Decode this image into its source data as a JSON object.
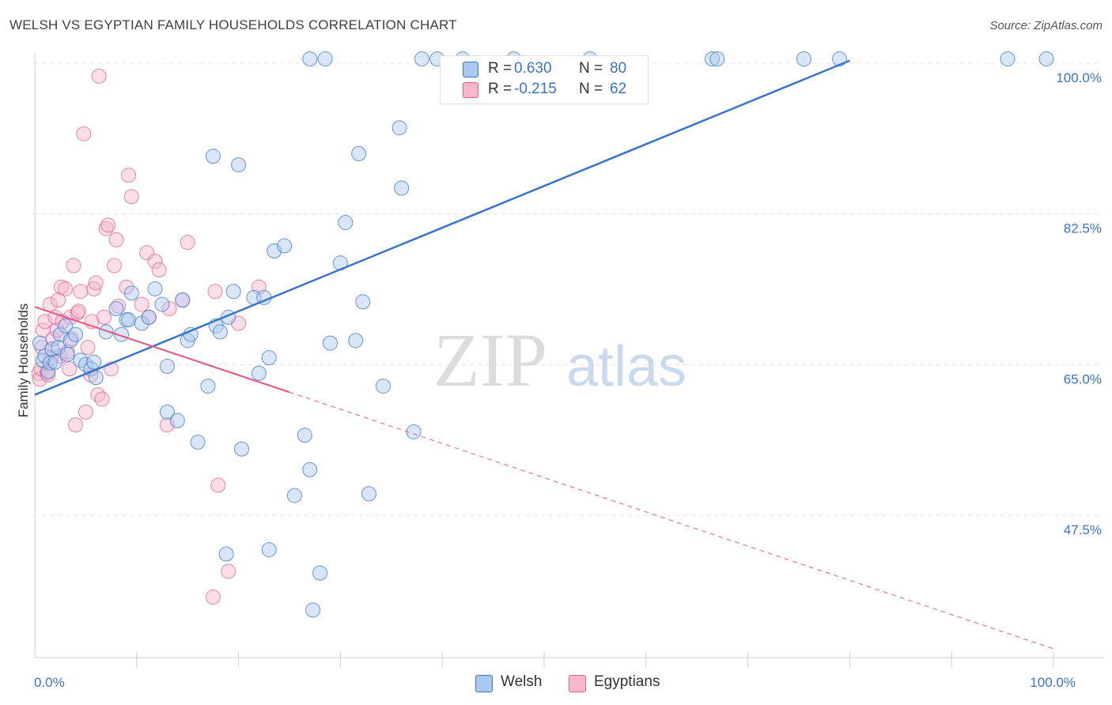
{
  "header": {
    "title": "WELSH VS EGYPTIAN FAMILY HOUSEHOLDS CORRELATION CHART",
    "source": "Source: ZipAtlas.com"
  },
  "watermark": {
    "zip": "ZIP",
    "atlas": "atlas"
  },
  "legend": {
    "welsh": {
      "r_label": "R =",
      "r_value": "0.630",
      "n_label": "N =",
      "n_value": "80"
    },
    "egyptians": {
      "r_label": "R =",
      "r_value": "-0.215",
      "n_label": "N =",
      "n_value": "62"
    }
  },
  "bottom_legend": {
    "welsh": "Welsh",
    "egyptians": "Egyptians"
  },
  "chart_data": {
    "type": "scatter",
    "title": "WELSH VS EGYPTIAN FAMILY HOUSEHOLDS CORRELATION CHART",
    "xlabel": "",
    "ylabel": "Family Households",
    "xlim": [
      0,
      100
    ],
    "ylim": [
      35,
      103
    ],
    "x_tick_labels": [
      {
        "value": 0,
        "label": "0.0%"
      },
      {
        "value": 100,
        "label": "100.0%"
      }
    ],
    "x_minor_ticks": [
      10,
      20,
      30,
      40,
      50,
      60,
      70,
      80,
      90,
      100
    ],
    "y_tick_labels": [
      {
        "value": 100,
        "label": "100.0%"
      },
      {
        "value": 82.5,
        "label": "82.5%"
      },
      {
        "value": 65,
        "label": "65.0%"
      },
      {
        "value": 47.5,
        "label": "47.5%"
      }
    ],
    "grid": true,
    "colors": {
      "welsh": "#3a74c8",
      "welsh_fill": "#aac7ef",
      "egyptians": "#e0608c",
      "egyptians_fill": "#f6b6cb"
    },
    "series": [
      {
        "name": "Welsh",
        "r": 0.63,
        "n": 80,
        "trend": {
          "x": [
            0,
            80
          ],
          "y": [
            61.5,
            100.3
          ]
        },
        "points": [
          [
            0.5,
            67.5
          ],
          [
            0.8,
            65.5
          ],
          [
            1.0,
            66.0
          ],
          [
            1.3,
            64.2
          ],
          [
            1.5,
            65.2
          ],
          [
            1.7,
            66.8
          ],
          [
            2.0,
            65.3
          ],
          [
            2.3,
            67.0
          ],
          [
            2.5,
            68.5
          ],
          [
            3.0,
            69.5
          ],
          [
            3.2,
            66.2
          ],
          [
            3.5,
            67.8
          ],
          [
            4.0,
            68.5
          ],
          [
            4.5,
            65.5
          ],
          [
            5.0,
            65.0
          ],
          [
            5.5,
            64.5
          ],
          [
            5.8,
            65.3
          ],
          [
            6.0,
            63.5
          ],
          [
            7.0,
            68.8
          ],
          [
            8.0,
            71.5
          ],
          [
            8.5,
            68.5
          ],
          [
            9.0,
            70.2
          ],
          [
            9.2,
            70.2
          ],
          [
            9.5,
            73.3
          ],
          [
            10.5,
            69.8
          ],
          [
            11.2,
            70.5
          ],
          [
            11.8,
            73.8
          ],
          [
            12.5,
            72.0
          ],
          [
            13.0,
            64.8
          ],
          [
            13.0,
            59.5
          ],
          [
            14.0,
            58.5
          ],
          [
            14.5,
            72.5
          ],
          [
            15.0,
            67.8
          ],
          [
            15.3,
            68.5
          ],
          [
            16.0,
            56.0
          ],
          [
            17.0,
            62.5
          ],
          [
            17.5,
            89.2
          ],
          [
            17.8,
            69.5
          ],
          [
            18.2,
            68.8
          ],
          [
            19.0,
            70.5
          ],
          [
            19.5,
            73.5
          ],
          [
            20.0,
            88.2
          ],
          [
            20.3,
            55.2
          ],
          [
            21.5,
            72.8
          ],
          [
            22.0,
            64.0
          ],
          [
            22.5,
            72.8
          ],
          [
            23.0,
            65.8
          ],
          [
            23.5,
            78.2
          ],
          [
            24.5,
            78.8
          ],
          [
            25.5,
            49.8
          ],
          [
            27.0,
            52.8
          ],
          [
            27.3,
            36.5
          ],
          [
            28.0,
            40.8
          ],
          [
            29.0,
            67.5
          ],
          [
            30.0,
            76.8
          ],
          [
            30.5,
            81.5
          ],
          [
            31.5,
            67.8
          ],
          [
            31.8,
            89.5
          ],
          [
            32.2,
            72.3
          ],
          [
            32.8,
            50.0
          ],
          [
            34.2,
            62.5
          ],
          [
            35.8,
            92.5
          ],
          [
            36.0,
            85.5
          ],
          [
            37.2,
            57.2
          ],
          [
            27.0,
            100.5
          ],
          [
            28.5,
            100.5
          ],
          [
            38.0,
            100.5
          ],
          [
            39.5,
            100.5
          ],
          [
            42.0,
            100.5
          ],
          [
            47.0,
            100.5
          ],
          [
            54.5,
            100.5
          ],
          [
            66.5,
            100.5
          ],
          [
            67.0,
            100.5
          ],
          [
            75.5,
            100.5
          ],
          [
            79.0,
            100.5
          ],
          [
            95.5,
            100.5
          ],
          [
            99.3,
            100.5
          ],
          [
            18.8,
            43.0
          ],
          [
            23.0,
            43.5
          ],
          [
            26.5,
            56.8
          ]
        ]
      },
      {
        "name": "Egyptians",
        "r": -0.215,
        "n": 62,
        "trend": {
          "x": [
            0,
            25
          ],
          "y": [
            71.7,
            61.8
          ]
        },
        "trend_extended": {
          "x": [
            25,
            100
          ],
          "y": [
            61.8,
            32.0
          ]
        },
        "points": [
          [
            0.4,
            64.0
          ],
          [
            0.5,
            63.3
          ],
          [
            0.6,
            64.5
          ],
          [
            0.7,
            67.0
          ],
          [
            0.8,
            69.0
          ],
          [
            1.0,
            70.0
          ],
          [
            1.2,
            64.0
          ],
          [
            1.3,
            63.8
          ],
          [
            1.5,
            72.0
          ],
          [
            1.6,
            65.8
          ],
          [
            1.8,
            68.0
          ],
          [
            2.0,
            70.5
          ],
          [
            2.2,
            69.0
          ],
          [
            2.3,
            72.5
          ],
          [
            2.5,
            66.0
          ],
          [
            2.6,
            74.0
          ],
          [
            2.7,
            70.0
          ],
          [
            3.0,
            73.8
          ],
          [
            3.2,
            66.5
          ],
          [
            3.4,
            64.5
          ],
          [
            3.5,
            70.5
          ],
          [
            3.6,
            68.0
          ],
          [
            3.8,
            76.5
          ],
          [
            4.0,
            58.0
          ],
          [
            4.2,
            71.0
          ],
          [
            4.3,
            71.2
          ],
          [
            4.5,
            73.5
          ],
          [
            4.8,
            91.8
          ],
          [
            5.0,
            59.5
          ],
          [
            5.2,
            67.0
          ],
          [
            5.5,
            63.8
          ],
          [
            5.6,
            70.0
          ],
          [
            5.8,
            73.8
          ],
          [
            6.0,
            74.5
          ],
          [
            6.2,
            61.5
          ],
          [
            6.3,
            98.5
          ],
          [
            6.6,
            61.0
          ],
          [
            6.8,
            70.5
          ],
          [
            7.0,
            80.8
          ],
          [
            7.2,
            81.2
          ],
          [
            7.5,
            64.5
          ],
          [
            7.8,
            76.5
          ],
          [
            8.0,
            79.5
          ],
          [
            8.2,
            71.8
          ],
          [
            9.0,
            74.0
          ],
          [
            9.2,
            87.0
          ],
          [
            9.5,
            84.5
          ],
          [
            10.5,
            72.0
          ],
          [
            11.0,
            78.0
          ],
          [
            11.2,
            70.5
          ],
          [
            11.8,
            77.0
          ],
          [
            12.2,
            76.0
          ],
          [
            13.0,
            58.0
          ],
          [
            13.2,
            71.5
          ],
          [
            14.5,
            72.5
          ],
          [
            15.0,
            79.2
          ],
          [
            17.5,
            38.0
          ],
          [
            17.7,
            73.5
          ],
          [
            18.0,
            51.0
          ],
          [
            19.0,
            41.0
          ],
          [
            20.0,
            69.8
          ],
          [
            22.0,
            74.0
          ]
        ]
      }
    ]
  }
}
